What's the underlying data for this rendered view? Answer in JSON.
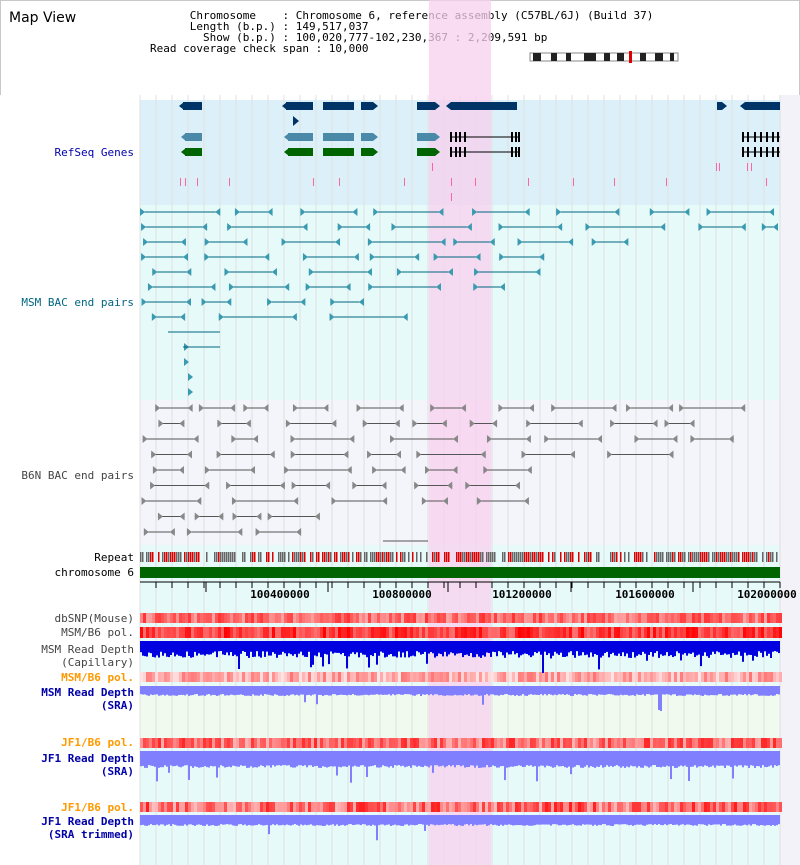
{
  "header": {
    "title": "Map View",
    "info": [
      "      Chromosome    : Chromosome 6, reference assembly (C57BL/6J) (Build 37)",
      "      Length (b.p.) : 149,517,037",
      "        Show (b.p.) : 100,020,777-102,230,367 : 2,209,591 bp",
      "Read coverage check span : 10,000"
    ]
  },
  "tracks": {
    "refseq": {
      "label": "RefSeq Genes",
      "color": "#0000aa"
    },
    "msm_bac": {
      "label": "MSM BAC end pairs",
      "color": "#006680"
    },
    "b6n_bac": {
      "label": "B6N BAC end pairs",
      "color": "#444444"
    },
    "repeat": {
      "label": "Repeat"
    },
    "chromosome": {
      "label": "chromosome 6"
    },
    "dbsnp": {
      "label": "dbSNP(Mouse)"
    },
    "msm_b6_pol": {
      "label": "MSM/B6 pol."
    },
    "msm_depth_cap": {
      "label": "MSM Read Depth",
      "sub": "(Capillary)"
    },
    "msm_b6_pol2": {
      "label": "MSM/B6 pol.",
      "color": "#ff9900"
    },
    "msm_depth_sra": {
      "label": "MSM Read Depth",
      "sub": "(SRA)",
      "color": "#0000aa"
    },
    "jf1_b6_pol": {
      "label": "JF1/B6 pol.",
      "color": "#ff9900"
    },
    "jf1_depth_sra": {
      "label": "JF1 Read Depth",
      "sub": "(SRA)",
      "color": "#0000aa"
    },
    "jf1_b6_pol2": {
      "label": "JF1/B6 pol.",
      "color": "#ff9900"
    },
    "jf1_depth_trim": {
      "label": "JF1 Read Depth",
      "sub": "(SRA trimmed)",
      "color": "#0000aa"
    }
  },
  "axis": {
    "ticks": [
      "100400000",
      "100800000",
      "101200000",
      "101600000",
      "102000000"
    ]
  },
  "colors": {
    "refseq_bg": "#dcf0fa",
    "track_bg": "#e6fafa",
    "highlight": "#f8d0ee",
    "chromosome": "#006400",
    "gene_dark": "#003366",
    "gene_mid": "#4a8aa8",
    "gene_green": "#006400",
    "depth_cap": "#0000e0",
    "depth_sra": "#8080ff"
  }
}
